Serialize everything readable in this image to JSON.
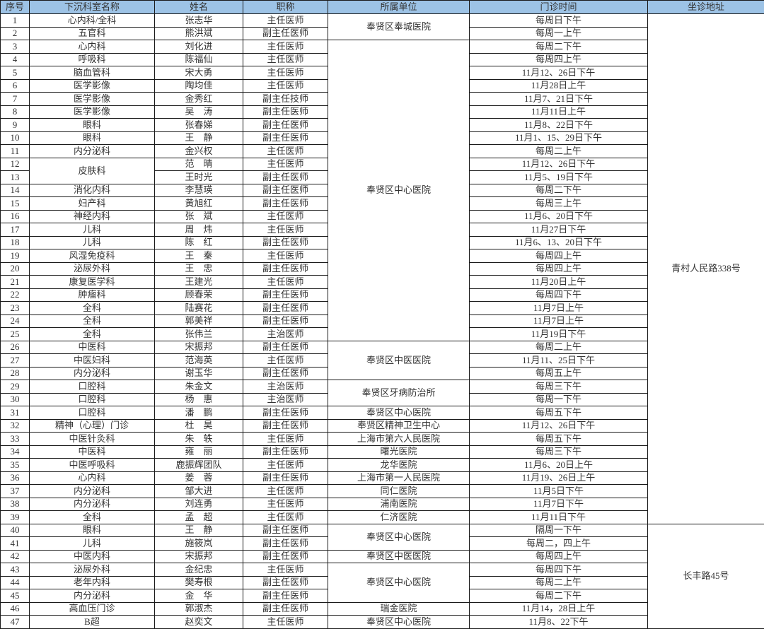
{
  "colors": {
    "header_bg": "#9DC3E6",
    "border": "#1a1a1a",
    "text": "#333333",
    "background": "#ffffff"
  },
  "table": {
    "columns": [
      "序号",
      "下沉科室名称",
      "姓名",
      "职称",
      "所属单位",
      "门诊时间",
      "坐诊地址"
    ],
    "column_keys": [
      "no",
      "department",
      "name",
      "title",
      "unit",
      "time",
      "address"
    ],
    "rows": [
      [
        "1",
        "心内科/全科",
        "张志华",
        "主任医师",
        {
          "t": "奉贤区奉城医院",
          "rs": 2
        },
        "每周日下午",
        {
          "t": "青村人民路338号",
          "rs": 39
        }
      ],
      [
        "2",
        "五官科",
        "熊洪斌",
        "副主任医师",
        null,
        "每周一上午",
        null
      ],
      [
        "3",
        "心内科",
        "刘化进",
        "主任医师",
        {
          "t": "奉贤区中心医院",
          "rs": 23
        },
        "每周二下午",
        null
      ],
      [
        "4",
        "呼吸科",
        "陈福仙",
        "主任医师",
        null,
        "每周四上午",
        null
      ],
      [
        "5",
        "脑血管科",
        "宋大勇",
        "主任医师",
        null,
        "11月12、26日下午",
        null
      ],
      [
        "6",
        "医学影像",
        "陶均佳",
        "主任医师",
        null,
        "11月28日上午",
        null
      ],
      [
        "7",
        "医学影像",
        "金秀红",
        "副主任技师",
        null,
        "11月7、21日下午",
        null
      ],
      [
        "8",
        "医学影像",
        "吴　涛",
        "副主任医师",
        null,
        "11月11日上午",
        null
      ],
      [
        "9",
        "眼科",
        "张春娣",
        "副主任医师",
        null,
        "11月8、22日下午",
        null
      ],
      [
        "10",
        "眼科",
        "王　静",
        "副主任医师",
        null,
        "11月1、15、29日下午",
        null
      ],
      [
        "11",
        "内分泌科",
        "金兴权",
        "主任医师",
        null,
        "每周二上午",
        null
      ],
      [
        "12",
        {
          "t": "皮肤科",
          "rs": 2
        },
        "范　晴",
        "主任医师",
        null,
        "11月12、26日下午",
        null
      ],
      [
        "13",
        null,
        "王时光",
        "副主任医师",
        null,
        "11月5、19日下午",
        null
      ],
      [
        "14",
        "消化内科",
        "李慧瑛",
        "副主任医师",
        null,
        "每周二下午",
        null
      ],
      [
        "15",
        "妇产科",
        "黄旭红",
        "副主任医师",
        null,
        "每周三上午",
        null
      ],
      [
        "16",
        "神经内科",
        "张　斌",
        "主任医师",
        null,
        "11月6、20日下午",
        null
      ],
      [
        "17",
        "儿科",
        "周　炜",
        "主任医师",
        null,
        "11月27日下午",
        null
      ],
      [
        "18",
        "儿科",
        "陈　红",
        "副主任医师",
        null,
        "11月6、13、20日下午",
        null
      ],
      [
        "19",
        "风湿免疫科",
        "王　秦",
        "主任医师",
        null,
        "每周四上午",
        null
      ],
      [
        "20",
        "泌尿外科",
        "王　忠",
        "副主任医师",
        null,
        "每周四上午",
        null
      ],
      [
        "21",
        "康复医学科",
        "王建光",
        "主任医师",
        null,
        "11月20日上午",
        null
      ],
      [
        "22",
        "肿瘤科",
        "顾春荣",
        "副主任医师",
        null,
        "每周四下午",
        null
      ],
      [
        "23",
        "全科",
        "陆赛花",
        "副主任医师",
        null,
        "11月7日上午",
        null
      ],
      [
        "24",
        "全科",
        "郭美祥",
        "副主任医师",
        null,
        "11月7日上午",
        null
      ],
      [
        "25",
        "全科",
        "张伟兰",
        "主治医师",
        null,
        "11月19日下午",
        null
      ],
      [
        "26",
        "中医科",
        "宋振邦",
        "副主任医师",
        {
          "t": "奉贤区中医医院",
          "rs": 3
        },
        "每周二上午",
        null
      ],
      [
        "27",
        "中医妇科",
        "范海英",
        "主任医师",
        null,
        "11月11、25日下午",
        null
      ],
      [
        "28",
        "内分泌科",
        "谢玉华",
        "副主任医师",
        null,
        "每周五上午",
        null
      ],
      [
        "29",
        "口腔科",
        "朱金文",
        "主治医师",
        {
          "t": "奉贤区牙病防治所",
          "rs": 2
        },
        "每周三下午",
        null
      ],
      [
        "30",
        "口腔科",
        "杨　惠",
        "主治医师",
        null,
        "每周一下午",
        null
      ],
      [
        "31",
        "口腔科",
        "潘　鹏",
        "副主任医师",
        "奉贤区中心医院",
        "每周五下午",
        null
      ],
      [
        "32",
        "精神（心理）门诊",
        "杜　昊",
        "副主任医师",
        "奉贤区精神卫生中心",
        "11月12、26日下午",
        null
      ],
      [
        "33",
        "中医针灸科",
        "朱　轶",
        "主任医师",
        "上海市第六人民医院",
        "每周五下午",
        null
      ],
      [
        "34",
        "中医科",
        "雍　丽",
        "副主任医师",
        "曙光医院",
        "每周三下午",
        null
      ],
      [
        "35",
        "中医呼吸科",
        "鹿振辉团队",
        "主任医师",
        "龙华医院",
        "11月6、20日上午",
        null
      ],
      [
        "36",
        "心内科",
        "姜　蓉",
        "副主任医师",
        "上海市第一人民医院",
        "11月19、26日上午",
        null
      ],
      [
        "37",
        "内分泌科",
        "邹大进",
        "主任医师",
        "同仁医院",
        "11月5日下午",
        null
      ],
      [
        "38",
        "内分泌科",
        "刘连勇",
        "主任医师",
        "浦南医院",
        "11月7日下午",
        null
      ],
      [
        "39",
        "全科",
        "孟　超",
        "主任医师",
        "仁济医院",
        "11月11日下午",
        null
      ],
      [
        "40",
        "眼科",
        "王　静",
        "副主任医师",
        {
          "t": "奉贤区中心医院",
          "rs": 2
        },
        "隔周一下午",
        {
          "t": "长丰路45号",
          "rs": 8
        }
      ],
      [
        "41",
        "儿科",
        "施筱岚",
        "副主任医师",
        null,
        "每周二，四上午",
        null
      ],
      [
        "42",
        "中医内科",
        "宋振邦",
        "副主任医师",
        "奉贤区中医医院",
        "每周四上午",
        null
      ],
      [
        "43",
        "泌尿外科",
        "金纪忠",
        "主任医师",
        {
          "t": "奉贤区中心医院",
          "rs": 3
        },
        "每周四下午",
        null
      ],
      [
        "44",
        "老年内科",
        "樊寿根",
        "副主任医师",
        null,
        "每周二上午",
        null
      ],
      [
        "45",
        "内分泌科",
        "金　华",
        "副主任医师",
        null,
        "每周二下午",
        null
      ],
      [
        "46",
        "高血压门诊",
        "郭淑杰",
        "副主任医师",
        "瑞金医院",
        "11月14，28日上午",
        null
      ],
      [
        "47",
        "B超",
        "赵奕文",
        "主任医师",
        "奉贤区中心医院",
        "11月8、22下午",
        null
      ]
    ]
  }
}
